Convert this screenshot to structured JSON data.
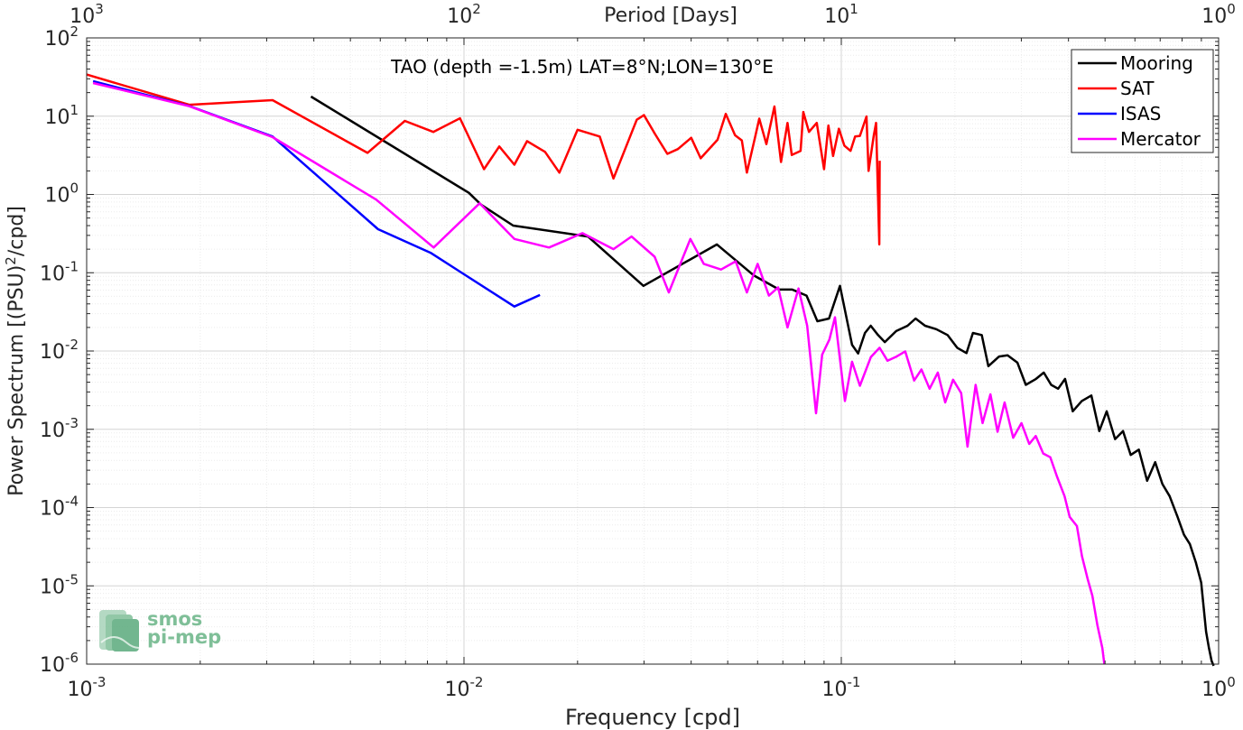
{
  "chart_data": {
    "type": "line",
    "title": "TAO (depth =-1.5m) LAT=8°N;LON=130°E",
    "xlabel": "Frequency [cpd]",
    "ylabel": "Power Spectrum [(PSU)²/cpd]",
    "top_xlabel": "Period [Days]",
    "xscale": "log",
    "yscale": "log",
    "xlim": [
      0.001,
      1
    ],
    "ylim": [
      1e-06,
      100
    ],
    "grid": true,
    "legend_position": "top-right",
    "x_ticks": [
      {
        "value": 0.001,
        "base": "10",
        "exp": "-3"
      },
      {
        "value": 0.01,
        "base": "10",
        "exp": "-2"
      },
      {
        "value": 0.1,
        "base": "10",
        "exp": "-1"
      },
      {
        "value": 1,
        "base": "10",
        "exp": "0"
      }
    ],
    "y_ticks": [
      {
        "value": 1e-06,
        "base": "10",
        "exp": "-6"
      },
      {
        "value": 1e-05,
        "base": "10",
        "exp": "-5"
      },
      {
        "value": 0.0001,
        "base": "10",
        "exp": "-4"
      },
      {
        "value": 0.001,
        "base": "10",
        "exp": "-3"
      },
      {
        "value": 0.01,
        "base": "10",
        "exp": "-2"
      },
      {
        "value": 0.1,
        "base": "10",
        "exp": "-1"
      },
      {
        "value": 1,
        "base": "10",
        "exp": "0"
      },
      {
        "value": 10,
        "base": "10",
        "exp": "1"
      },
      {
        "value": 100,
        "base": "10",
        "exp": "2"
      }
    ],
    "top_ticks": [
      {
        "value": 0.001,
        "base": "10",
        "exp": "3"
      },
      {
        "value": 0.01,
        "base": "10",
        "exp": "2"
      },
      {
        "value": 0.1,
        "base": "10",
        "exp": "1"
      },
      {
        "value": 1,
        "base": "10",
        "exp": "0"
      }
    ],
    "series": [
      {
        "name": "Mooring",
        "color": "#000000",
        "points": [
          [
            0.00393,
            17.8
          ],
          [
            0.0103,
            1.05
          ],
          [
            0.0111,
            0.74
          ],
          [
            0.0135,
            0.4
          ],
          [
            0.0213,
            0.29
          ],
          [
            0.0299,
            0.068
          ],
          [
            0.0468,
            0.23
          ],
          [
            0.0587,
            0.092
          ],
          [
            0.0684,
            0.061
          ],
          [
            0.0741,
            0.061
          ],
          [
            0.0809,
            0.051
          ],
          [
            0.0864,
            0.024
          ],
          [
            0.0928,
            0.026
          ],
          [
            0.0992,
            0.068
          ],
          [
            0.1068,
            0.012
          ],
          [
            0.1108,
            0.0093
          ],
          [
            0.1155,
            0.017
          ],
          [
            0.1197,
            0.021
          ],
          [
            0.1251,
            0.016
          ],
          [
            0.1304,
            0.013
          ],
          [
            0.1398,
            0.018
          ],
          [
            0.1498,
            0.021
          ],
          [
            0.1574,
            0.026
          ],
          [
            0.1667,
            0.021
          ],
          [
            0.1785,
            0.019
          ],
          [
            0.1912,
            0.016
          ],
          [
            0.2029,
            0.011
          ],
          [
            0.2147,
            0.0094
          ],
          [
            0.2232,
            0.017
          ],
          [
            0.2357,
            0.016
          ],
          [
            0.2453,
            0.0064
          ],
          [
            0.2619,
            0.0085
          ],
          [
            0.2758,
            0.0088
          ],
          [
            0.2929,
            0.0071
          ],
          [
            0.3084,
            0.0037
          ],
          [
            0.3281,
            0.0044
          ],
          [
            0.3441,
            0.0053
          ],
          [
            0.3599,
            0.0037
          ],
          [
            0.3756,
            0.0033
          ],
          [
            0.3918,
            0.0044
          ],
          [
            0.4106,
            0.0017
          ],
          [
            0.4338,
            0.0023
          ],
          [
            0.46,
            0.0027
          ],
          [
            0.4828,
            0.00095
          ],
          [
            0.5052,
            0.0017
          ],
          [
            0.5316,
            0.00075
          ],
          [
            0.5579,
            0.00095
          ],
          [
            0.5849,
            0.00047
          ],
          [
            0.6145,
            0.00055
          ],
          [
            0.6463,
            0.00022
          ],
          [
            0.6788,
            0.00038
          ],
          [
            0.7094,
            0.0002
          ],
          [
            0.7416,
            0.00014
          ],
          [
            0.7785,
            7.6e-05
          ],
          [
            0.8092,
            4.5e-05
          ],
          [
            0.8395,
            3.4e-05
          ],
          [
            0.87,
            2e-05
          ],
          [
            0.8993,
            1.1e-05
          ],
          [
            0.9265,
            2.6e-06
          ],
          [
            0.9426,
            1.6e-06
          ],
          [
            0.958,
            1.1e-06
          ],
          [
            0.97,
            9.5e-07
          ]
        ]
      },
      {
        "name": "SAT",
        "color": "#ff0000",
        "points": [
          [
            0.001,
            34
          ],
          [
            0.00187,
            14
          ],
          [
            0.00311,
            16
          ],
          [
            0.00555,
            3.4
          ],
          [
            0.00697,
            8.7
          ],
          [
            0.00829,
            6.3
          ],
          [
            0.00976,
            9.4
          ],
          [
            0.0113,
            2.1
          ],
          [
            0.0124,
            4.1
          ],
          [
            0.0136,
            2.4
          ],
          [
            0.0147,
            4.8
          ],
          [
            0.0164,
            3.5
          ],
          [
            0.0179,
            1.9
          ],
          [
            0.02,
            6.7
          ],
          [
            0.0229,
            5.5
          ],
          [
            0.0249,
            1.6
          ],
          [
            0.0287,
            9.0
          ],
          [
            0.03,
            10.3
          ],
          [
            0.0321,
            5.9
          ],
          [
            0.0346,
            3.3
          ],
          [
            0.0369,
            3.8
          ],
          [
            0.04,
            5.3
          ],
          [
            0.0424,
            2.9
          ],
          [
            0.047,
            5.0
          ],
          [
            0.0494,
            10.7
          ],
          [
            0.0523,
            5.7
          ],
          [
            0.0545,
            4.9
          ],
          [
            0.0562,
            1.9
          ],
          [
            0.0591,
            5.4
          ],
          [
            0.0606,
            9.3
          ],
          [
            0.0633,
            4.4
          ],
          [
            0.0665,
            13.3
          ],
          [
            0.0692,
            2.6
          ],
          [
            0.072,
            8.2
          ],
          [
            0.0739,
            3.2
          ],
          [
            0.078,
            3.6
          ],
          [
            0.0793,
            11.3
          ],
          [
            0.0821,
            6.3
          ],
          [
            0.0861,
            8.2
          ],
          [
            0.09,
            2.1
          ],
          [
            0.0924,
            7.6
          ],
          [
            0.0951,
            3.1
          ],
          [
            0.0985,
            6.9
          ],
          [
            0.1019,
            4.2
          ],
          [
            0.1058,
            3.6
          ],
          [
            0.1088,
            5.5
          ],
          [
            0.112,
            5.6
          ],
          [
            0.1166,
            9.9
          ],
          [
            0.1181,
            2.0
          ],
          [
            0.1219,
            5.6
          ],
          [
            0.1236,
            8.2
          ],
          [
            0.1261,
            0.23
          ],
          [
            0.1264,
            2.7
          ]
        ]
      },
      {
        "name": "ISAS",
        "color": "#0000ff",
        "points": [
          [
            0.00104,
            28
          ],
          [
            0.00187,
            13.5
          ],
          [
            0.00311,
            5.5
          ],
          [
            0.00592,
            0.36
          ],
          [
            0.00815,
            0.18
          ],
          [
            0.0136,
            0.037
          ],
          [
            0.0159,
            0.052
          ]
        ]
      },
      {
        "name": "Mercator",
        "color": "#ff00ff",
        "points": [
          [
            0.00104,
            26.5
          ],
          [
            0.00187,
            13.4
          ],
          [
            0.00311,
            5.4
          ],
          [
            0.00585,
            0.86
          ],
          [
            0.00831,
            0.21
          ],
          [
            0.011,
            0.77
          ],
          [
            0.0136,
            0.27
          ],
          [
            0.0168,
            0.21
          ],
          [
            0.0206,
            0.32
          ],
          [
            0.0249,
            0.2
          ],
          [
            0.0278,
            0.29
          ],
          [
            0.032,
            0.16
          ],
          [
            0.0349,
            0.056
          ],
          [
            0.0398,
            0.27
          ],
          [
            0.0432,
            0.13
          ],
          [
            0.048,
            0.11
          ],
          [
            0.0525,
            0.14
          ],
          [
            0.0562,
            0.056
          ],
          [
            0.06,
            0.13
          ],
          [
            0.0643,
            0.051
          ],
          [
            0.068,
            0.065
          ],
          [
            0.072,
            0.02
          ],
          [
            0.077,
            0.063
          ],
          [
            0.0812,
            0.021
          ],
          [
            0.0857,
            0.0016
          ],
          [
            0.089,
            0.009
          ],
          [
            0.093,
            0.014
          ],
          [
            0.0962,
            0.027
          ],
          [
            0.1022,
            0.0023
          ],
          [
            0.1068,
            0.0073
          ],
          [
            0.112,
            0.0036
          ],
          [
            0.1198,
            0.0084
          ],
          [
            0.1263,
            0.011
          ],
          [
            0.1326,
            0.0075
          ],
          [
            0.1402,
            0.0085
          ],
          [
            0.1477,
            0.0099
          ],
          [
            0.156,
            0.0042
          ],
          [
            0.1631,
            0.0058
          ],
          [
            0.1714,
            0.0033
          ],
          [
            0.1802,
            0.0053
          ],
          [
            0.1885,
            0.0022
          ],
          [
            0.1978,
            0.0043
          ],
          [
            0.2078,
            0.0029
          ],
          [
            0.216,
            0.0006
          ],
          [
            0.227,
            0.0037
          ],
          [
            0.2368,
            0.0012
          ],
          [
            0.2485,
            0.0028
          ],
          [
            0.2595,
            0.00093
          ],
          [
            0.2709,
            0.0022
          ],
          [
            0.2855,
            0.00078
          ],
          [
            0.3003,
            0.0012
          ],
          [
            0.3148,
            0.00065
          ],
          [
            0.3276,
            0.00082
          ],
          [
            0.3429,
            0.00049
          ],
          [
            0.3579,
            0.00044
          ],
          [
            0.3729,
            0.00025
          ],
          [
            0.3904,
            0.00014
          ],
          [
            0.4029,
            7.6e-05
          ],
          [
            0.4211,
            5.8e-05
          ],
          [
            0.4344,
            2.4e-05
          ],
          [
            0.4501,
            1.2e-05
          ],
          [
            0.4628,
            7.5e-06
          ],
          [
            0.4776,
            3.1e-06
          ],
          [
            0.492,
            1.6e-06
          ],
          [
            0.498,
            1e-06
          ]
        ]
      }
    ],
    "watermark": {
      "line1": "smos",
      "line2": "pi-mep"
    }
  }
}
